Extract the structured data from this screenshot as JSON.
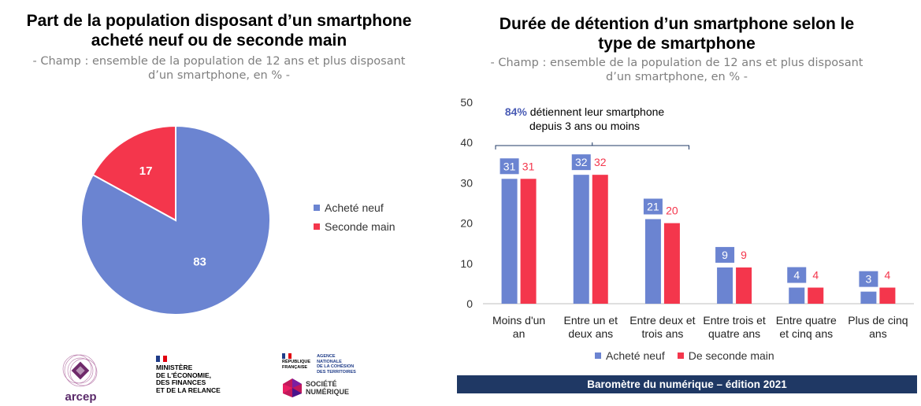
{
  "left_title": "Part de la population disposant d’un smartphone acheté neuf ou de seconde main",
  "left_title_line1": "Part de la population disposant d’un smartphone",
  "left_title_line2": "acheté neuf ou de seconde main",
  "left_subtitle_line1": "- Champ : ensemble de la population de 12 ans et plus disposant",
  "left_subtitle_line2": "d’un smartphone, en % -",
  "right_title_line1": "Durée de détention d’un smartphone selon le",
  "right_title_line2": "type de smartphone",
  "right_subtitle_line1": "- Champ : ensemble de la population de 12 ans et plus disposant",
  "right_subtitle_line2": "d’un smartphone, en % -",
  "annotation": {
    "pct": "84%",
    "text1": " détiennent leur smartphone",
    "text2": "depuis 3 ans ou moins"
  },
  "colors": {
    "neuf": "#6b84d1",
    "seconde": "#f4364c",
    "footer": "#1f3864"
  },
  "footer": "Baromètre  du numérique – édition 2021",
  "logos": {
    "arcep": "arcep",
    "ministere_line1": "MINISTÈRE",
    "ministere_line2": "DE L'ÉCONOMIE,",
    "ministere_line3": "DES FINANCES",
    "ministere_line4": "ET DE LA RELANCE",
    "rep_line1": "RÉPUBLIQUE",
    "rep_line2": "FRANÇAISE",
    "agence_line1": "AGENCE",
    "agence_line2": "NATIONALE",
    "agence_line3": "DE LA COHÉSION",
    "agence_line4": "DES TERRITOIRES",
    "societe_line1": "SOCIÉTÉ",
    "societe_line2": "NUMÉRIQUE"
  },
  "chart_data": [
    {
      "type": "pie",
      "labels": [
        "Acheté neuf",
        "Seconde main"
      ],
      "values": [
        83,
        17
      ],
      "legend_position": "right"
    },
    {
      "type": "bar",
      "categories": [
        "Moins d'un an",
        "Entre un et deux ans",
        "Entre deux et trois ans",
        "Entre trois et quatre ans",
        "Entre quatre et cinq ans",
        "Plus de cinq ans"
      ],
      "category_lines": [
        [
          "Moins d'un",
          "an"
        ],
        [
          "Entre un et",
          "deux ans"
        ],
        [
          "Entre deux et",
          "trois ans"
        ],
        [
          "Entre trois et",
          "quatre ans"
        ],
        [
          "Entre quatre",
          "et cinq ans"
        ],
        [
          "Plus de cinq",
          "ans"
        ]
      ],
      "series": [
        {
          "name": "Acheté neuf",
          "values": [
            31,
            32,
            21,
            9,
            4,
            3
          ]
        },
        {
          "name": "De seconde main",
          "values": [
            31,
            32,
            20,
            9,
            4,
            4
          ]
        }
      ],
      "ylim": [
        0,
        50
      ],
      "yticks": [
        0,
        10,
        20,
        30,
        40,
        50
      ],
      "grid": false,
      "legend_position": "bottom"
    }
  ]
}
